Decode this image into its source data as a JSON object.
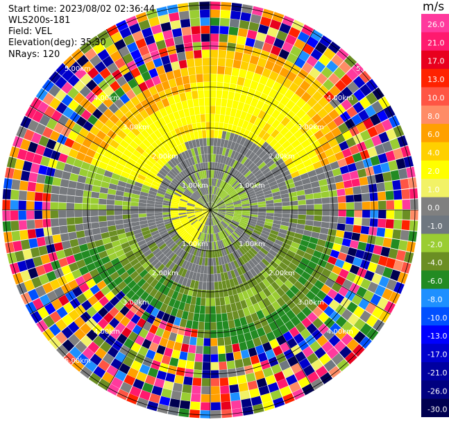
{
  "header": {
    "start_time": "Start time: 2023/08/02 02:36:44",
    "instrument": "WLS200s-181",
    "field": "Field: VEL",
    "elevation": "Elevation(deg): 35.30",
    "nrays": "NRays: 120"
  },
  "ring_labels": {
    "r1": "1.00km",
    "r2": "2.00km",
    "r3": "3.00km",
    "r4": "4.00km",
    "r5": "5.00km"
  },
  "colorbar": {
    "unit": "m/s",
    "bands": [
      {
        "color": "#ff3a9d",
        "label": "26.0"
      },
      {
        "color": "#ff1a6e",
        "label": "21.0"
      },
      {
        "color": "#e8001e",
        "label": "17.0"
      },
      {
        "color": "#ff2200",
        "label": "13.0"
      },
      {
        "color": "#ff5544",
        "label": "10.0"
      },
      {
        "color": "#ff8c66",
        "label": "8.0"
      },
      {
        "color": "#ffa000",
        "label": "6.0"
      },
      {
        "color": "#ffd000",
        "label": "4.0"
      },
      {
        "color": "#ffff00",
        "label": "2.0"
      },
      {
        "color": "#f2f266",
        "label": "1.0"
      },
      {
        "color": "#808080",
        "label": "0.0"
      },
      {
        "color": "#6f7780",
        "label": "-1.0"
      },
      {
        "color": "#9acd32",
        "label": "-2.0"
      },
      {
        "color": "#6b8e23",
        "label": "-4.0"
      },
      {
        "color": "#228b22",
        "label": "-6.0"
      },
      {
        "color": "#1e90ff",
        "label": "-8.0"
      },
      {
        "color": "#0050ff",
        "label": "-10.0"
      },
      {
        "color": "#0000ff",
        "label": "-13.0"
      },
      {
        "color": "#0000cd",
        "label": "-17.0"
      },
      {
        "color": "#0000a0",
        "label": "-21.0"
      },
      {
        "color": "#000080",
        "label": "-26.0"
      },
      {
        "color": "#000050",
        "label": "-30.0"
      }
    ]
  },
  "colors": {
    "gray": "#76797d",
    "light_green": "#9acd32",
    "olive": "#6b8e23",
    "green": "#228b22",
    "yellow": "#ffff00",
    "gold": "#ffd000",
    "orange": "#ffa000",
    "grid": "#000000",
    "label": "#ffffff"
  }
}
